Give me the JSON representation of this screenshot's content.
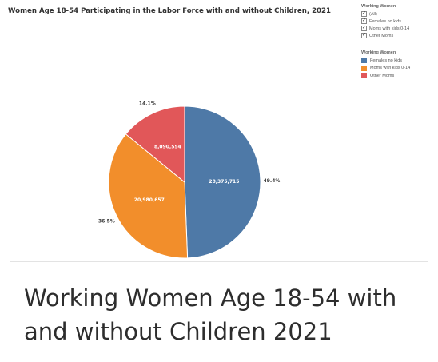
{
  "chart_data": {
    "type": "pie",
    "title": "Women Age 18-54 Participating in the Labor Force with and without Children, 2021",
    "slices": [
      {
        "name": "Females no kids",
        "value": 28375715,
        "value_label": "28,375,715",
        "percent_label": "49.4%",
        "color": "#4e79a7"
      },
      {
        "name": "Moms with kids 0-14",
        "value": 20980657,
        "value_label": "20,980,657",
        "percent_label": "36.5%",
        "color": "#f28e2b"
      },
      {
        "name": "Other Moms",
        "value": 8090554,
        "value_label": "8,090,554",
        "percent_label": "14.1%",
        "color": "#e15759"
      }
    ],
    "legend": {
      "title": "Working Women",
      "placement": "right",
      "items": [
        "Females no kids",
        "Moms with kids 0-14",
        "Other Moms"
      ]
    }
  },
  "filter": {
    "title": "Working Women",
    "options": [
      {
        "label": "(All)",
        "checked": true
      },
      {
        "label": "Females no kids",
        "checked": true
      },
      {
        "label": "Moms with kids 0-14",
        "checked": true
      },
      {
        "label": "Other Moms",
        "checked": true
      }
    ]
  },
  "headline": "Working Women Age 18-54 with and without Children 2021"
}
